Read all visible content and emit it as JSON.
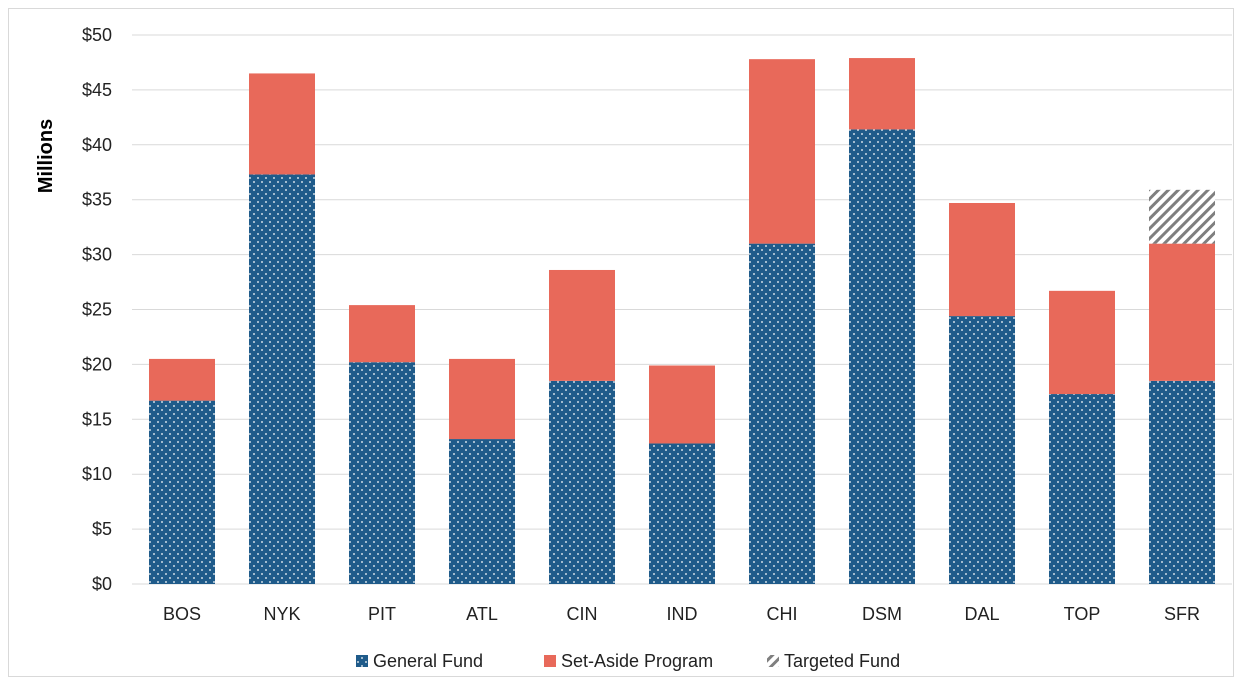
{
  "chart_data": {
    "type": "bar",
    "stacked": true,
    "title": "",
    "xlabel": "",
    "ylabel": "Millions",
    "ylim": [
      0,
      50
    ],
    "y_ticks": [
      "$0",
      "$5",
      "$10",
      "$15",
      "$20",
      "$25",
      "$30",
      "$35",
      "$40",
      "$45",
      "$50"
    ],
    "y_tick_values": [
      0,
      5,
      10,
      15,
      20,
      25,
      30,
      35,
      40,
      45,
      50
    ],
    "grid": true,
    "legend_position": "bottom",
    "categories": [
      "BOS",
      "NYK",
      "PIT",
      "ATL",
      "CIN",
      "IND",
      "CHI",
      "DSM",
      "DAL",
      "TOP",
      "SFR"
    ],
    "series": [
      {
        "name": "General Fund",
        "color": "#1f5b8a",
        "pattern": "dots",
        "values": [
          16.7,
          37.3,
          20.2,
          13.2,
          18.5,
          12.8,
          31.0,
          41.4,
          24.4,
          17.3,
          18.5
        ]
      },
      {
        "name": "Set-Aside Program",
        "color": "#e8695a",
        "pattern": "solid",
        "values": [
          3.8,
          9.2,
          5.2,
          7.3,
          10.1,
          7.1,
          16.8,
          6.5,
          10.3,
          9.4,
          12.5
        ]
      },
      {
        "name": "Targeted Fund",
        "color": "#7f7f7f",
        "pattern": "diagonal-hatch",
        "values": [
          0,
          0,
          0,
          0,
          0,
          0,
          0,
          0,
          0,
          0,
          4.9
        ]
      }
    ]
  }
}
